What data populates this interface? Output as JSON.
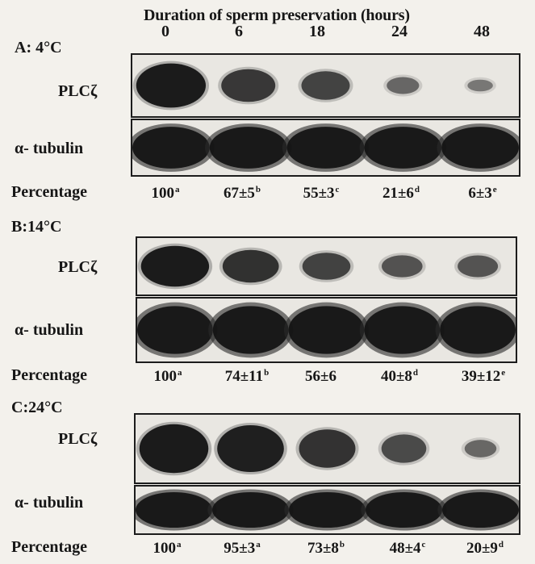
{
  "header": {
    "title": "Duration of sperm preservation (hours)",
    "hours": [
      "0",
      "6",
      "18",
      "24",
      "48"
    ]
  },
  "panels": [
    {
      "title": "A: 4°C",
      "plc_label": "PLCζ",
      "tubulin_label": "α- tubulin",
      "percentage_label": "Percentage",
      "percentages": [
        {
          "value": "100",
          "sup": "a"
        },
        {
          "value": "67±5",
          "sup": "b"
        },
        {
          "value": "55±3",
          "sup": "c"
        },
        {
          "value": "21±6",
          "sup": "d"
        },
        {
          "value": "6±3",
          "sup": "e"
        }
      ],
      "plc_intensity": [
        100,
        67,
        55,
        21,
        6
      ]
    },
    {
      "title": "B:14°C",
      "plc_label": "PLCζ",
      "tubulin_label": "α- tubulin",
      "percentage_label": "Percentage",
      "percentages": [
        {
          "value": "100",
          "sup": "a"
        },
        {
          "value": "74±11",
          "sup": "b"
        },
        {
          "value": "56±6",
          "sup": ""
        },
        {
          "value": "40±8",
          "sup": "d"
        },
        {
          "value": "39±12",
          "sup": "e"
        }
      ],
      "plc_intensity": [
        100,
        74,
        56,
        40,
        39
      ]
    },
    {
      "title": "C:24°C",
      "plc_label": "PLCζ",
      "tubulin_label": "α- tubulin",
      "percentage_label": "Percentage",
      "percentages": [
        {
          "value": "100",
          "sup": "a"
        },
        {
          "value": "95±3",
          "sup": "a"
        },
        {
          "value": "73±8",
          "sup": "b"
        },
        {
          "value": "48±4",
          "sup": "c"
        },
        {
          "value": "20±9",
          "sup": "d"
        }
      ],
      "plc_intensity": [
        100,
        95,
        73,
        48,
        20
      ]
    }
  ]
}
